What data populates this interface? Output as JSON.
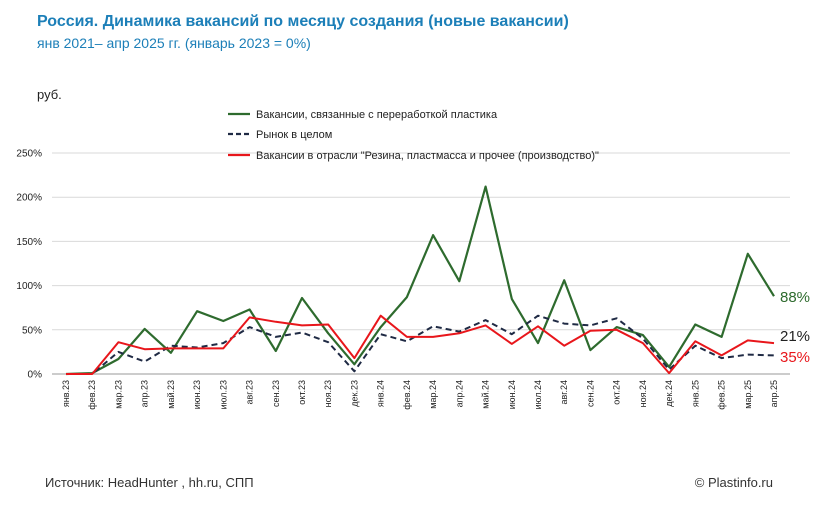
{
  "header": {
    "title": "Россия. Динамика вакансий по месяцу создания (новые вакансии)",
    "subtitle": "янв 2021– апр 2025 гг. (январь 2023 = 0%)",
    "unit": "руб."
  },
  "footer": {
    "source": "Источник: HeadHunter , hh.ru, СПП",
    "copyright": "© Plastinfo.ru"
  },
  "chart_data": {
    "type": "line",
    "categories": [
      "янв.23",
      "фев.23",
      "мар.23",
      "апр.23",
      "май.23",
      "июн.23",
      "июл.23",
      "авг.23",
      "сен.23",
      "окт.23",
      "ноя.23",
      "дек.23",
      "янв.24",
      "фев.24",
      "мар.24",
      "апр.24",
      "май.24",
      "июн.24",
      "июл.24",
      "авг.24",
      "сен.24",
      "окт.24",
      "ноя.24",
      "дек.24",
      "янв.25",
      "фев.25",
      "мар.25",
      "апр.25"
    ],
    "y_ticks": [
      "0%",
      "50%",
      "100%",
      "150%",
      "200%",
      "250%"
    ],
    "ylim": [
      0,
      250
    ],
    "grid": true,
    "legend_position": "top",
    "series": [
      {
        "name": "Вакансии, связанные с переработкой пластика",
        "color": "#2e6b2e",
        "style": "solid",
        "values": [
          0,
          1,
          17,
          51,
          24,
          71,
          60,
          73,
          26,
          86,
          46,
          11,
          53,
          87,
          157,
          105,
          212,
          85,
          35,
          106,
          27,
          53,
          44,
          8,
          56,
          42,
          136,
          88
        ],
        "end_label": "88%"
      },
      {
        "name": "Рынок в целом",
        "color": "#1f2a44",
        "style": "dashed",
        "values": [
          0,
          0,
          25,
          14,
          32,
          30,
          35,
          53,
          42,
          47,
          36,
          3,
          45,
          37,
          54,
          48,
          61,
          45,
          66,
          57,
          55,
          63,
          40,
          5,
          32,
          18,
          22,
          21
        ],
        "end_label": "21%"
      },
      {
        "name": "Вакансии в отрасли \"Резина, пластмасса и прочее (производство)\"",
        "color": "#e8161b",
        "style": "solid",
        "values": [
          0,
          0,
          36,
          28,
          29,
          29,
          29,
          64,
          59,
          55,
          56,
          18,
          66,
          42,
          42,
          46,
          55,
          34,
          54,
          32,
          49,
          50,
          35,
          1,
          37,
          21,
          38,
          35
        ],
        "end_label": "35%"
      }
    ]
  }
}
